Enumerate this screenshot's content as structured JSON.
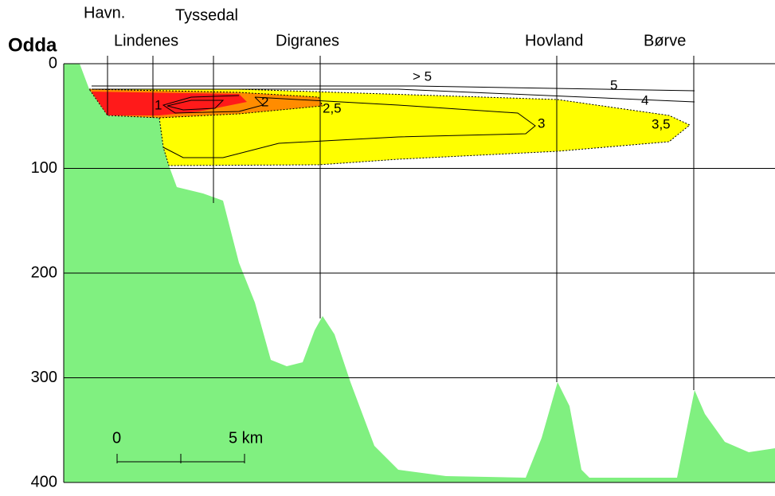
{
  "title": "Odda",
  "depth_axis": {
    "ylim": [
      0,
      400
    ],
    "yticks": [
      0,
      100,
      200,
      300,
      400
    ]
  },
  "stations": [
    "Havn.",
    "Lindenes",
    "Tyssedal",
    "Digranes",
    "Hovland",
    "Børve"
  ],
  "contour_labels": [
    "> 5",
    "5",
    "4",
    "3,5",
    "3",
    "2,5",
    "2",
    "1"
  ],
  "scale_bar": {
    "labels": [
      "0",
      "5 km"
    ]
  }
}
